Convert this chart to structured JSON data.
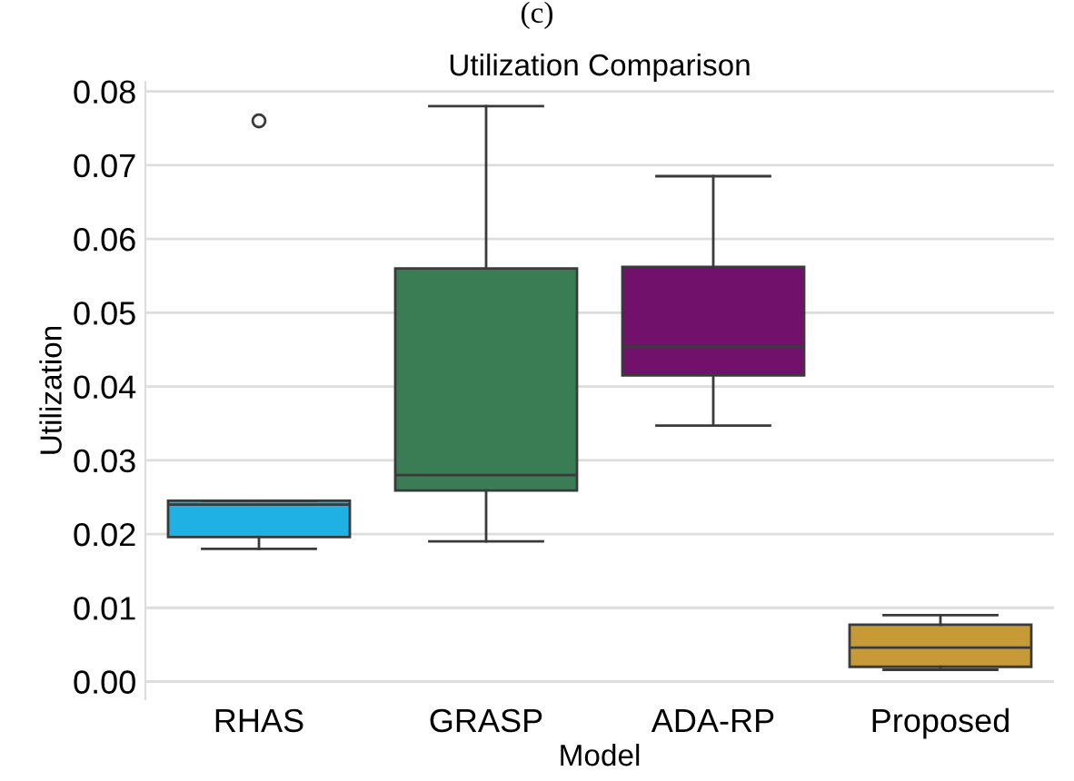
{
  "chart_data": {
    "type": "box",
    "title": "Utilization Comparison",
    "xlabel": "Model",
    "ylabel": "Utilization",
    "annotations": [
      "(c)"
    ],
    "categories": [
      "RHAS",
      "GRASP",
      "ADA-RP",
      "Proposed"
    ],
    "colors": [
      "#1fb1e3",
      "#3a7d55",
      "#72116b",
      "#c69b37"
    ],
    "boxes": [
      {
        "low": 0.018,
        "q1": 0.0196,
        "median": 0.024,
        "q3": 0.0245,
        "high": 0.0245,
        "outliers": [
          0.076
        ]
      },
      {
        "low": 0.019,
        "q1": 0.0259,
        "median": 0.028,
        "q3": 0.056,
        "high": 0.078
      },
      {
        "low": 0.0347,
        "q1": 0.0415,
        "median": 0.0454,
        "q3": 0.0562,
        "high": 0.0685
      },
      {
        "low": 0.0016,
        "q1": 0.002,
        "median": 0.0046,
        "q3": 0.0077,
        "high": 0.009
      }
    ],
    "ylim": [
      -0.0024,
      0.0813
    ],
    "yticks": [
      {
        "value": 0,
        "label": "0.00"
      },
      {
        "value": 0.01,
        "label": "0.01"
      },
      {
        "value": 0.02,
        "label": "0.02"
      },
      {
        "value": 0.03,
        "label": "0.03"
      },
      {
        "value": 0.04,
        "label": "0.04"
      },
      {
        "value": 0.05,
        "label": "0.05"
      },
      {
        "value": 0.06,
        "label": "0.06"
      },
      {
        "value": 0.07,
        "label": "0.07"
      },
      {
        "value": 0.08,
        "label": "0.08"
      }
    ],
    "grid": "y",
    "legend": false
  }
}
